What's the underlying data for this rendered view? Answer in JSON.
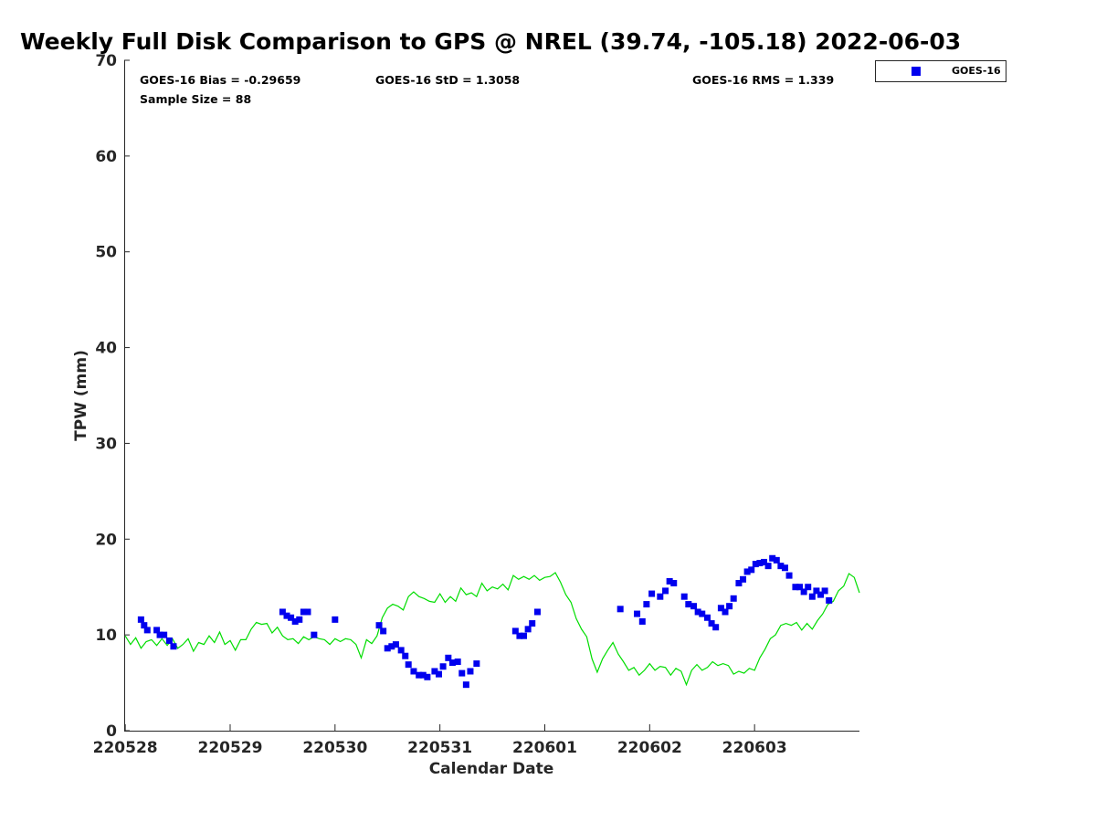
{
  "chart_data": {
    "type": "scatter",
    "title": "Weekly Full Disk Comparison to GPS @ NREL (39.74, -105.18) 2022-06-03",
    "xlabel": "Calendar Date",
    "ylabel": "TPW (mm)",
    "ylim": [
      0,
      70
    ],
    "xlim": [
      -0.01,
      7.0
    ],
    "y_ticks": [
      "0",
      "10",
      "20",
      "30",
      "40",
      "50",
      "60",
      "70"
    ],
    "x_ticks": [
      "220528",
      "220529",
      "220530",
      "220531",
      "220601",
      "220602",
      "220603"
    ],
    "stats": {
      "bias": "GOES-16 Bias = -0.29659",
      "std": "GOES-16 StD = 1.3058",
      "rms": "GOES-16 RMS = 1.339",
      "sample": "Sample Size = 88"
    },
    "legend": {
      "label": "GOES-16",
      "position": "top-right"
    },
    "colors": {
      "goes": "#0000ee",
      "gps": "#00dd00"
    },
    "series": [
      {
        "name": "GPS",
        "kind": "line",
        "points": [
          [
            0.0,
            9.9
          ],
          [
            0.05,
            9.0
          ],
          [
            0.1,
            9.7
          ],
          [
            0.15,
            8.6
          ],
          [
            0.2,
            9.3
          ],
          [
            0.25,
            9.5
          ],
          [
            0.3,
            8.9
          ],
          [
            0.35,
            9.6
          ],
          [
            0.4,
            8.9
          ],
          [
            0.45,
            9.6
          ],
          [
            0.5,
            8.6
          ],
          [
            0.55,
            9.0
          ],
          [
            0.6,
            9.6
          ],
          [
            0.65,
            8.3
          ],
          [
            0.7,
            9.2
          ],
          [
            0.75,
            9.0
          ],
          [
            0.8,
            9.9
          ],
          [
            0.85,
            9.2
          ],
          [
            0.9,
            10.3
          ],
          [
            0.95,
            9.0
          ],
          [
            1.0,
            9.4
          ],
          [
            1.05,
            8.4
          ],
          [
            1.1,
            9.5
          ],
          [
            1.15,
            9.5
          ],
          [
            1.2,
            10.6
          ],
          [
            1.25,
            11.3
          ],
          [
            1.3,
            11.1
          ],
          [
            1.35,
            11.2
          ],
          [
            1.4,
            10.2
          ],
          [
            1.45,
            10.8
          ],
          [
            1.5,
            9.9
          ],
          [
            1.55,
            9.5
          ],
          [
            1.6,
            9.6
          ],
          [
            1.65,
            9.1
          ],
          [
            1.7,
            9.8
          ],
          [
            1.75,
            9.5
          ],
          [
            1.8,
            9.8
          ],
          [
            1.85,
            9.6
          ],
          [
            1.9,
            9.5
          ],
          [
            1.95,
            9.0
          ],
          [
            2.0,
            9.6
          ],
          [
            2.05,
            9.3
          ],
          [
            2.1,
            9.6
          ],
          [
            2.15,
            9.5
          ],
          [
            2.2,
            9.0
          ],
          [
            2.25,
            7.6
          ],
          [
            2.3,
            9.5
          ],
          [
            2.35,
            9.1
          ],
          [
            2.4,
            9.9
          ],
          [
            2.45,
            11.8
          ],
          [
            2.5,
            12.8
          ],
          [
            2.55,
            13.2
          ],
          [
            2.6,
            13.0
          ],
          [
            2.65,
            12.6
          ],
          [
            2.7,
            14.0
          ],
          [
            2.75,
            14.5
          ],
          [
            2.8,
            14.0
          ],
          [
            2.85,
            13.8
          ],
          [
            2.9,
            13.5
          ],
          [
            2.95,
            13.4
          ],
          [
            3.0,
            14.3
          ],
          [
            3.05,
            13.4
          ],
          [
            3.1,
            14.0
          ],
          [
            3.15,
            13.5
          ],
          [
            3.2,
            14.9
          ],
          [
            3.25,
            14.2
          ],
          [
            3.3,
            14.4
          ],
          [
            3.35,
            14.0
          ],
          [
            3.4,
            15.4
          ],
          [
            3.45,
            14.6
          ],
          [
            3.5,
            15.0
          ],
          [
            3.55,
            14.8
          ],
          [
            3.6,
            15.3
          ],
          [
            3.65,
            14.7
          ],
          [
            3.7,
            16.2
          ],
          [
            3.75,
            15.8
          ],
          [
            3.8,
            16.1
          ],
          [
            3.85,
            15.8
          ],
          [
            3.9,
            16.2
          ],
          [
            3.95,
            15.7
          ],
          [
            4.0,
            16.0
          ],
          [
            4.05,
            16.1
          ],
          [
            4.1,
            16.5
          ],
          [
            4.15,
            15.5
          ],
          [
            4.2,
            14.2
          ],
          [
            4.25,
            13.4
          ],
          [
            4.3,
            11.7
          ],
          [
            4.35,
            10.6
          ],
          [
            4.4,
            9.8
          ],
          [
            4.45,
            7.5
          ],
          [
            4.5,
            6.1
          ],
          [
            4.55,
            7.5
          ],
          [
            4.6,
            8.4
          ],
          [
            4.65,
            9.2
          ],
          [
            4.7,
            8.0
          ],
          [
            4.75,
            7.2
          ],
          [
            4.8,
            6.3
          ],
          [
            4.85,
            6.6
          ],
          [
            4.9,
            5.8
          ],
          [
            4.95,
            6.3
          ],
          [
            5.0,
            7.0
          ],
          [
            5.05,
            6.3
          ],
          [
            5.1,
            6.7
          ],
          [
            5.15,
            6.6
          ],
          [
            5.2,
            5.8
          ],
          [
            5.25,
            6.5
          ],
          [
            5.3,
            6.2
          ],
          [
            5.35,
            4.8
          ],
          [
            5.4,
            6.3
          ],
          [
            5.45,
            6.9
          ],
          [
            5.5,
            6.3
          ],
          [
            5.55,
            6.6
          ],
          [
            5.6,
            7.2
          ],
          [
            5.65,
            6.8
          ],
          [
            5.7,
            7.0
          ],
          [
            5.75,
            6.8
          ],
          [
            5.8,
            5.9
          ],
          [
            5.85,
            6.2
          ],
          [
            5.9,
            6.0
          ],
          [
            5.95,
            6.5
          ],
          [
            6.0,
            6.3
          ],
          [
            6.05,
            7.6
          ],
          [
            6.1,
            8.5
          ],
          [
            6.15,
            9.6
          ],
          [
            6.2,
            10.0
          ],
          [
            6.25,
            11.0
          ],
          [
            6.3,
            11.2
          ],
          [
            6.35,
            11.0
          ],
          [
            6.4,
            11.3
          ],
          [
            6.45,
            10.5
          ],
          [
            6.5,
            11.2
          ],
          [
            6.55,
            10.6
          ],
          [
            6.6,
            11.5
          ],
          [
            6.65,
            12.2
          ],
          [
            6.7,
            13.2
          ],
          [
            6.75,
            13.5
          ],
          [
            6.8,
            14.6
          ],
          [
            6.85,
            15.1
          ],
          [
            6.9,
            16.4
          ],
          [
            6.95,
            16.0
          ],
          [
            7.0,
            14.4
          ]
        ]
      },
      {
        "name": "GOES-16",
        "kind": "scatter",
        "points": [
          [
            0.15,
            11.6
          ],
          [
            0.18,
            11.0
          ],
          [
            0.21,
            10.5
          ],
          [
            0.3,
            10.5
          ],
          [
            0.33,
            10.0
          ],
          [
            0.37,
            10.0
          ],
          [
            0.42,
            9.4
          ],
          [
            0.46,
            8.8
          ],
          [
            1.5,
            12.4
          ],
          [
            1.54,
            12.0
          ],
          [
            1.58,
            11.8
          ],
          [
            1.62,
            11.4
          ],
          [
            1.66,
            11.6
          ],
          [
            1.7,
            12.4
          ],
          [
            1.74,
            12.4
          ],
          [
            1.8,
            10.0
          ],
          [
            2.0,
            11.6
          ],
          [
            2.42,
            11.0
          ],
          [
            2.46,
            10.4
          ],
          [
            2.5,
            8.6
          ],
          [
            2.54,
            8.8
          ],
          [
            2.58,
            9.0
          ],
          [
            2.63,
            8.4
          ],
          [
            2.67,
            7.8
          ],
          [
            2.7,
            6.9
          ],
          [
            2.75,
            6.2
          ],
          [
            2.8,
            5.8
          ],
          [
            2.84,
            5.8
          ],
          [
            2.88,
            5.6
          ],
          [
            2.95,
            6.2
          ],
          [
            2.99,
            5.9
          ],
          [
            3.03,
            6.7
          ],
          [
            3.08,
            7.6
          ],
          [
            3.12,
            7.1
          ],
          [
            3.17,
            7.2
          ],
          [
            3.21,
            6.0
          ],
          [
            3.25,
            4.8
          ],
          [
            3.29,
            6.2
          ],
          [
            3.35,
            7.0
          ],
          [
            3.72,
            10.4
          ],
          [
            3.76,
            9.9
          ],
          [
            3.8,
            9.9
          ],
          [
            3.84,
            10.6
          ],
          [
            3.88,
            11.2
          ],
          [
            3.93,
            12.4
          ],
          [
            4.72,
            12.7
          ],
          [
            4.88,
            12.2
          ],
          [
            4.93,
            11.4
          ],
          [
            4.97,
            13.2
          ],
          [
            5.02,
            14.3
          ],
          [
            5.1,
            14.0
          ],
          [
            5.15,
            14.6
          ],
          [
            5.19,
            15.6
          ],
          [
            5.23,
            15.4
          ],
          [
            5.33,
            14.0
          ],
          [
            5.37,
            13.2
          ],
          [
            5.42,
            13.0
          ],
          [
            5.46,
            12.4
          ],
          [
            5.5,
            12.2
          ],
          [
            5.55,
            11.8
          ],
          [
            5.59,
            11.2
          ],
          [
            5.63,
            10.8
          ],
          [
            5.68,
            12.8
          ],
          [
            5.72,
            12.4
          ],
          [
            5.76,
            13.0
          ],
          [
            5.8,
            13.8
          ],
          [
            5.85,
            15.4
          ],
          [
            5.89,
            15.8
          ],
          [
            5.93,
            16.6
          ],
          [
            5.97,
            16.8
          ],
          [
            6.01,
            17.4
          ],
          [
            6.05,
            17.5
          ],
          [
            6.09,
            17.6
          ],
          [
            6.13,
            17.2
          ],
          [
            6.17,
            18.0
          ],
          [
            6.21,
            17.8
          ],
          [
            6.25,
            17.2
          ],
          [
            6.29,
            17.0
          ],
          [
            6.33,
            16.2
          ],
          [
            6.39,
            15.0
          ],
          [
            6.43,
            15.0
          ],
          [
            6.47,
            14.5
          ],
          [
            6.51,
            15.0
          ],
          [
            6.55,
            14.0
          ],
          [
            6.59,
            14.6
          ],
          [
            6.63,
            14.2
          ],
          [
            6.67,
            14.6
          ],
          [
            6.71,
            13.6
          ]
        ]
      }
    ]
  }
}
